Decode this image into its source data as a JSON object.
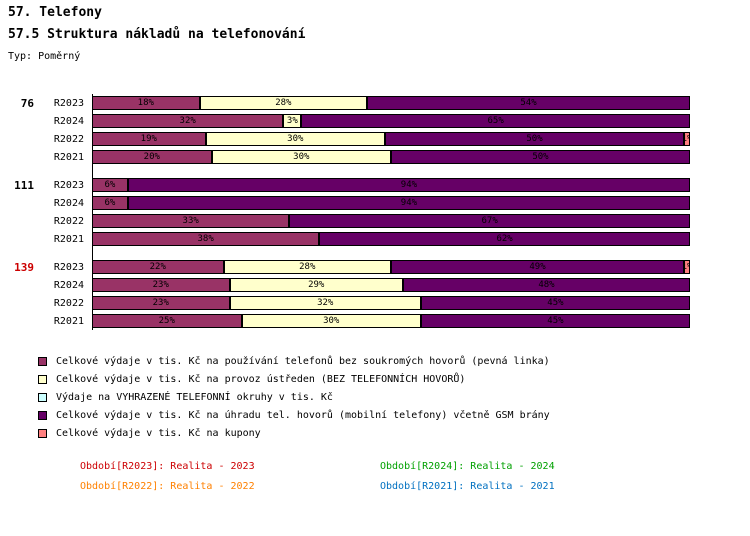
{
  "title": "57. Telefony",
  "subtitle": "57.5 Struktura nákladů na telefonování",
  "type_label": "Typ: Poměrný",
  "chart_data": {
    "type": "bar",
    "orientation": "horizontal",
    "stacked": true,
    "unit": "%",
    "xlim": [
      0,
      100
    ],
    "series": [
      {
        "name": "Celkové výdaje v tis. Kč na používání telefonů bez soukromých hovorů (pevná linka)",
        "color": "#993366"
      },
      {
        "name": "Celkové výdaje v tis. Kč na provoz ústředen (BEZ TELEFONNÍCH HOVORŮ)",
        "color": "#FFFFCC"
      },
      {
        "name": "Výdaje na VYHRAZENÉ TELEFONNÍ okruhy v tis. Kč",
        "color": "#CCFFFF"
      },
      {
        "name": "Celkové výdaje v tis. Kč na úhradu tel. hovorů (mobilní telefony) včetně GSM brány",
        "color": "#660066"
      },
      {
        "name": "Celkové výdaje v tis. Kč na kupony",
        "color": "#FF8080"
      }
    ],
    "groups": [
      {
        "label": "76",
        "label_color": "#000000",
        "rows": [
          {
            "label": "R2023",
            "values": [
              18,
              28,
              0,
              54,
              0
            ]
          },
          {
            "label": "R2024",
            "values": [
              32,
              3,
              0,
              65,
              0
            ]
          },
          {
            "label": "R2022",
            "values": [
              19,
              30,
              0,
              50,
              1
            ]
          },
          {
            "label": "R2021",
            "values": [
              20,
              30,
              0,
              50,
              0
            ]
          }
        ]
      },
      {
        "label": "111",
        "label_color": "#000000",
        "rows": [
          {
            "label": "R2023",
            "values": [
              6,
              0,
              0,
              94,
              0
            ]
          },
          {
            "label": "R2024",
            "values": [
              6,
              0,
              0,
              94,
              0
            ]
          },
          {
            "label": "R2022",
            "values": [
              33,
              0,
              0,
              67,
              0
            ]
          },
          {
            "label": "R2021",
            "values": [
              38,
              0,
              0,
              62,
              0
            ]
          }
        ]
      },
      {
        "label": "139",
        "label_color": "#CC0000",
        "rows": [
          {
            "label": "R2023",
            "values": [
              22,
              28,
              0,
              49,
              1
            ]
          },
          {
            "label": "R2024",
            "values": [
              23,
              29,
              0,
              48,
              0
            ]
          },
          {
            "label": "R2022",
            "values": [
              23,
              32,
              0,
              45,
              0
            ]
          },
          {
            "label": "R2021",
            "values": [
              25,
              30,
              0,
              45,
              0
            ]
          }
        ]
      }
    ]
  },
  "legend": {
    "items": [
      {
        "label": "Celkové výdaje v tis. Kč na používání telefonů bez soukromých hovorů (pevná linka)",
        "color": "#993366"
      },
      {
        "label": "Celkové výdaje v tis. Kč na provoz ústředen (BEZ TELEFONNÍCH HOVORŮ)",
        "color": "#FFFFCC"
      },
      {
        "label": "Výdaje na VYHRAZENÉ TELEFONNÍ okruhy v tis. Kč",
        "color": "#CCFFFF"
      },
      {
        "label": "Celkové výdaje v tis. Kč na úhradu tel. hovorů (mobilní telefony) včetně GSM brány",
        "color": "#660066"
      },
      {
        "label": "Celkové výdaje v tis. Kč na kupony",
        "color": "#FF8080"
      }
    ]
  },
  "periods": {
    "r2023": {
      "text": "Období[R2023]: Realita - 2023",
      "color": "#CC0000"
    },
    "r2024": {
      "text": "Období[R2024]: Realita - 2024",
      "color": "#00A000"
    },
    "r2022": {
      "text": "Období[R2022]: Realita - 2022",
      "color": "#FF8000"
    },
    "r2021": {
      "text": "Období[R2021]: Realita - 2021",
      "color": "#0070C0"
    }
  }
}
